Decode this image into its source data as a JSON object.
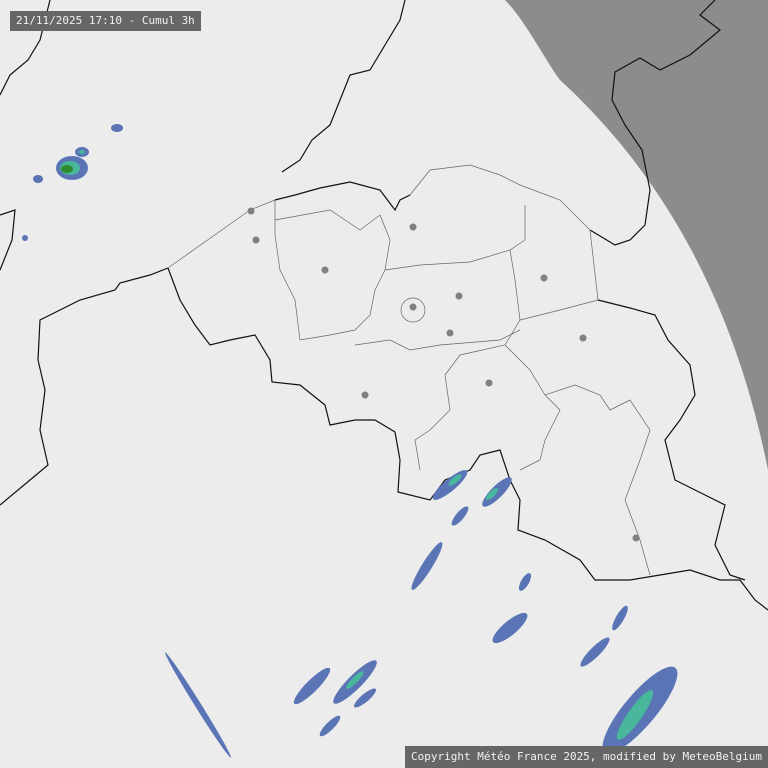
{
  "header": {
    "timestamp_label": "21/11/2025 17:10 - Cumul 3h"
  },
  "footer": {
    "copyright": "Copyright Météo France 2025, modified by MeteoBelgium"
  },
  "colors": {
    "background": "#ececec",
    "out_of_range": "#8c8c8c",
    "border": "#111111",
    "province_border": "#666666",
    "city_dot": "#808080",
    "rain_light": "#5a74b6",
    "rain_medium": "#49b79c",
    "rain_heavy": "#2e8b2e"
  }
}
